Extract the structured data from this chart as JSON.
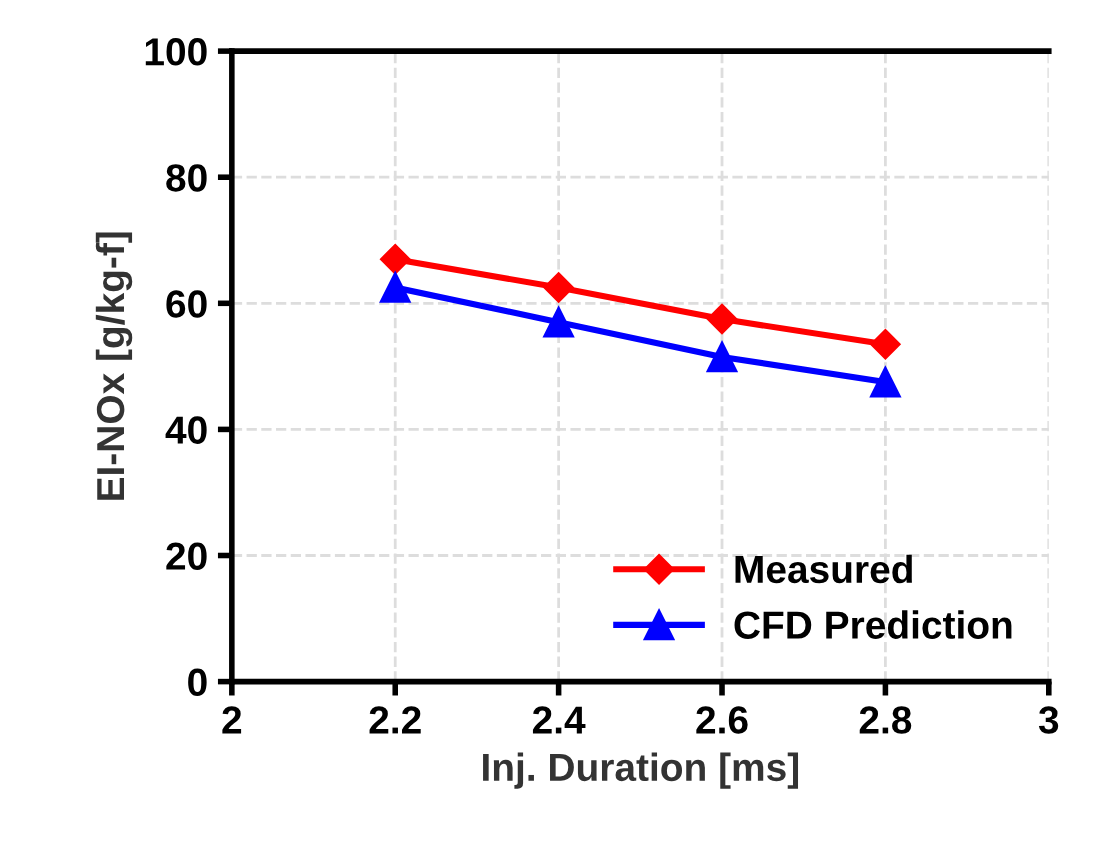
{
  "chart_data": {
    "type": "line",
    "xlabel": "Inj. Duration [ms]",
    "ylabel": "EI-NOx [g/kg-f]",
    "x": [
      2.2,
      2.4,
      2.6,
      2.8
    ],
    "series": [
      {
        "name": "Measured",
        "color": "#ff0000",
        "marker": "diamond",
        "values": [
          67,
          62.5,
          57.5,
          53.5
        ]
      },
      {
        "name": "CFD Prediction",
        "color": "#0000ff",
        "marker": "triangle",
        "values": [
          62.5,
          57,
          51.5,
          47.5
        ]
      }
    ],
    "xlim": [
      2,
      3
    ],
    "xticks": [
      2,
      2.2,
      2.4,
      2.6,
      2.8,
      3
    ],
    "ylim": [
      0,
      100
    ],
    "yticks": [
      0,
      20,
      40,
      60,
      80,
      100
    ],
    "grid": true,
    "legend": "bottom right",
    "line_style": "solid"
  }
}
